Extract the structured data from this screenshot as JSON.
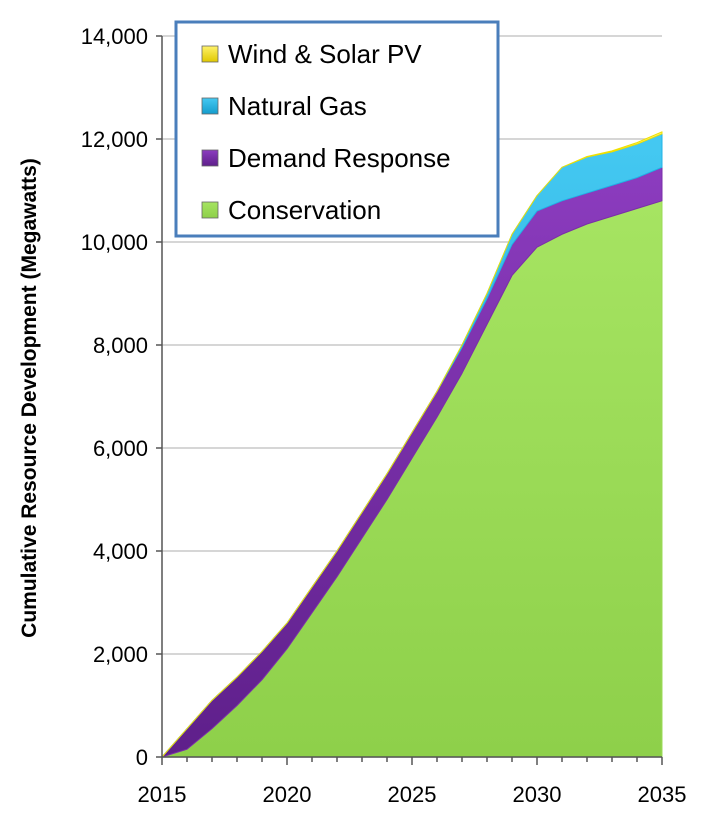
{
  "chart_data": {
    "type": "area",
    "stacked": true,
    "title": "",
    "xlabel": "",
    "ylabel": "Cumulative Resource Development  (Megawatts)",
    "xlim": [
      2015,
      2035
    ],
    "ylim": [
      0,
      14000
    ],
    "x_ticks": [
      2015,
      2020,
      2025,
      2030,
      2035
    ],
    "y_ticks": [
      0,
      2000,
      4000,
      6000,
      8000,
      10000,
      12000,
      14000
    ],
    "y_tick_labels": [
      "0",
      "2,000",
      "4,000",
      "6,000",
      "8,000",
      "10,000",
      "12,000",
      "14,000"
    ],
    "grid": "horizontal",
    "legend_position": "top-left",
    "x": [
      2015,
      2016,
      2017,
      2018,
      2019,
      2020,
      2021,
      2022,
      2023,
      2024,
      2025,
      2026,
      2027,
      2028,
      2029,
      2030,
      2031,
      2032,
      2033,
      2034,
      2035
    ],
    "series": [
      {
        "name": "Conservation",
        "color": "#9bdb57",
        "values": [
          0,
          150,
          550,
          1000,
          1500,
          2100,
          2800,
          3500,
          4250,
          5000,
          5800,
          6600,
          7450,
          8400,
          9350,
          9900,
          10150,
          10350,
          10500,
          10650,
          10800
        ]
      },
      {
        "name": "Demand Response",
        "color": "#7a2fa8",
        "values": [
          0,
          400,
          550,
          550,
          550,
          500,
          500,
          500,
          500,
          500,
          500,
          500,
          500,
          500,
          600,
          700,
          650,
          600,
          600,
          600,
          650
        ]
      },
      {
        "name": "Natural Gas",
        "color": "#21b3e6",
        "values": [
          0,
          0,
          0,
          0,
          0,
          0,
          0,
          0,
          0,
          0,
          0,
          0,
          50,
          100,
          200,
          300,
          650,
          700,
          650,
          650,
          650
        ]
      },
      {
        "name": "Wind & Solar PV",
        "color": "#f0e000",
        "values": [
          0,
          0,
          0,
          0,
          0,
          0,
          0,
          0,
          0,
          0,
          0,
          0,
          0,
          0,
          0,
          0,
          0,
          10,
          20,
          30,
          40
        ]
      }
    ],
    "legend_order": [
      "Wind & Solar PV",
      "Natural Gas",
      "Demand Response",
      "Conservation"
    ]
  }
}
